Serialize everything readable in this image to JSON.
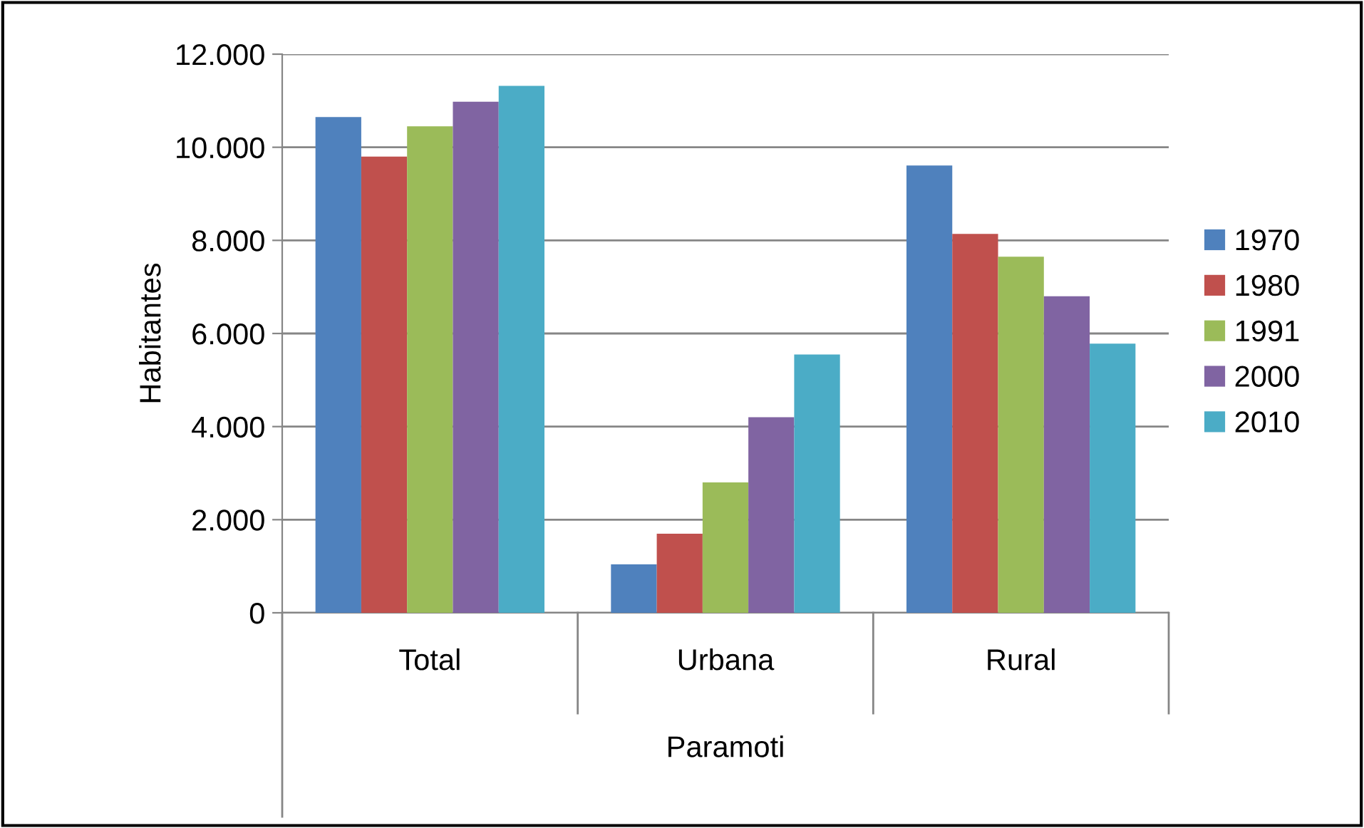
{
  "chart_data": {
    "type": "bar",
    "ylabel": "Habitantes",
    "xlabel": "Paramoti",
    "categories": [
      "Total",
      "Urbana",
      "Rural"
    ],
    "series": [
      {
        "name": "1970",
        "color": "#4f81bd",
        "values": [
          10650,
          1040,
          9610
        ]
      },
      {
        "name": "1980",
        "color": "#c0504d",
        "values": [
          9800,
          1700,
          8140
        ]
      },
      {
        "name": "1991",
        "color": "#9bbb59",
        "values": [
          10450,
          2800,
          7650
        ]
      },
      {
        "name": "2000",
        "color": "#8064a2",
        "values": [
          10980,
          4200,
          6800
        ]
      },
      {
        "name": "2010",
        "color": "#4bacc6",
        "values": [
          11320,
          5550,
          5780
        ]
      }
    ],
    "ylim": [
      0,
      12000
    ],
    "yticks": [
      0,
      {
        "value": 2000,
        "label": "2.000"
      },
      {
        "value": 4000,
        "label": "4.000"
      },
      {
        "value": 6000,
        "label": "6.000"
      },
      {
        "value": 8000,
        "label": "8.000"
      },
      {
        "value": 10000,
        "label": "10.000"
      },
      {
        "value": 12000,
        "label": "12.000"
      }
    ],
    "grid": "y",
    "legend": "right"
  }
}
